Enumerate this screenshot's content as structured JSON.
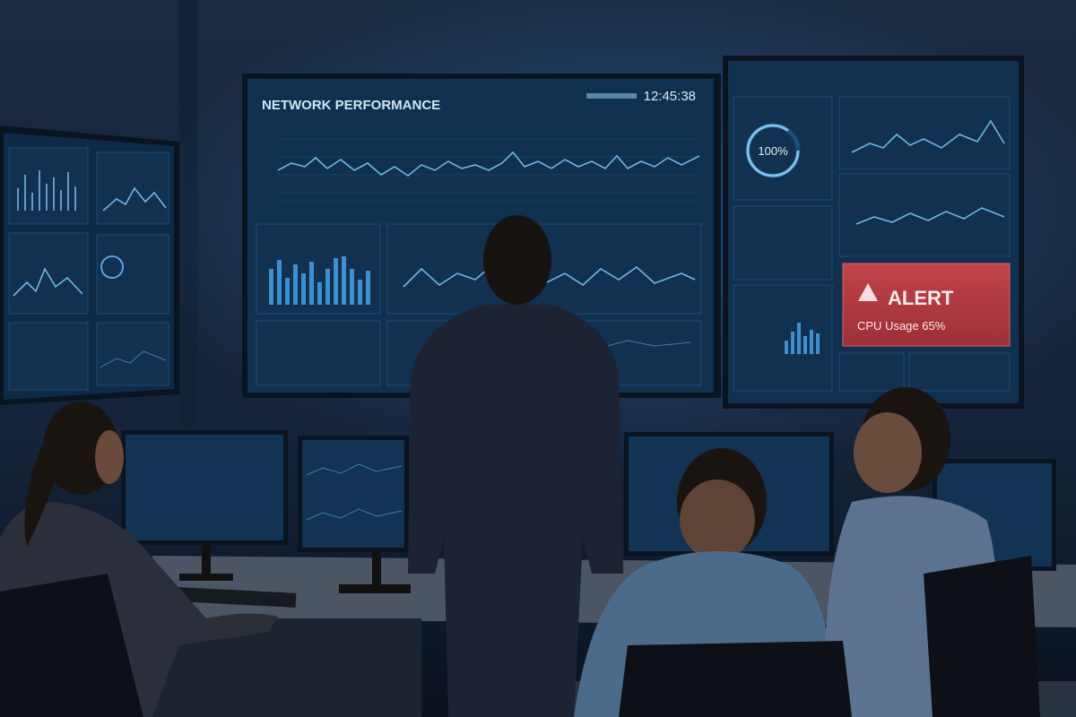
{
  "main_screen": {
    "title": "NETWORK PERFORMANCE",
    "clock": "12:45:38"
  },
  "right_screen": {
    "gauge_label": "100%",
    "alert": {
      "title": "ALERT",
      "message": "CPU Usage 65%"
    }
  }
}
